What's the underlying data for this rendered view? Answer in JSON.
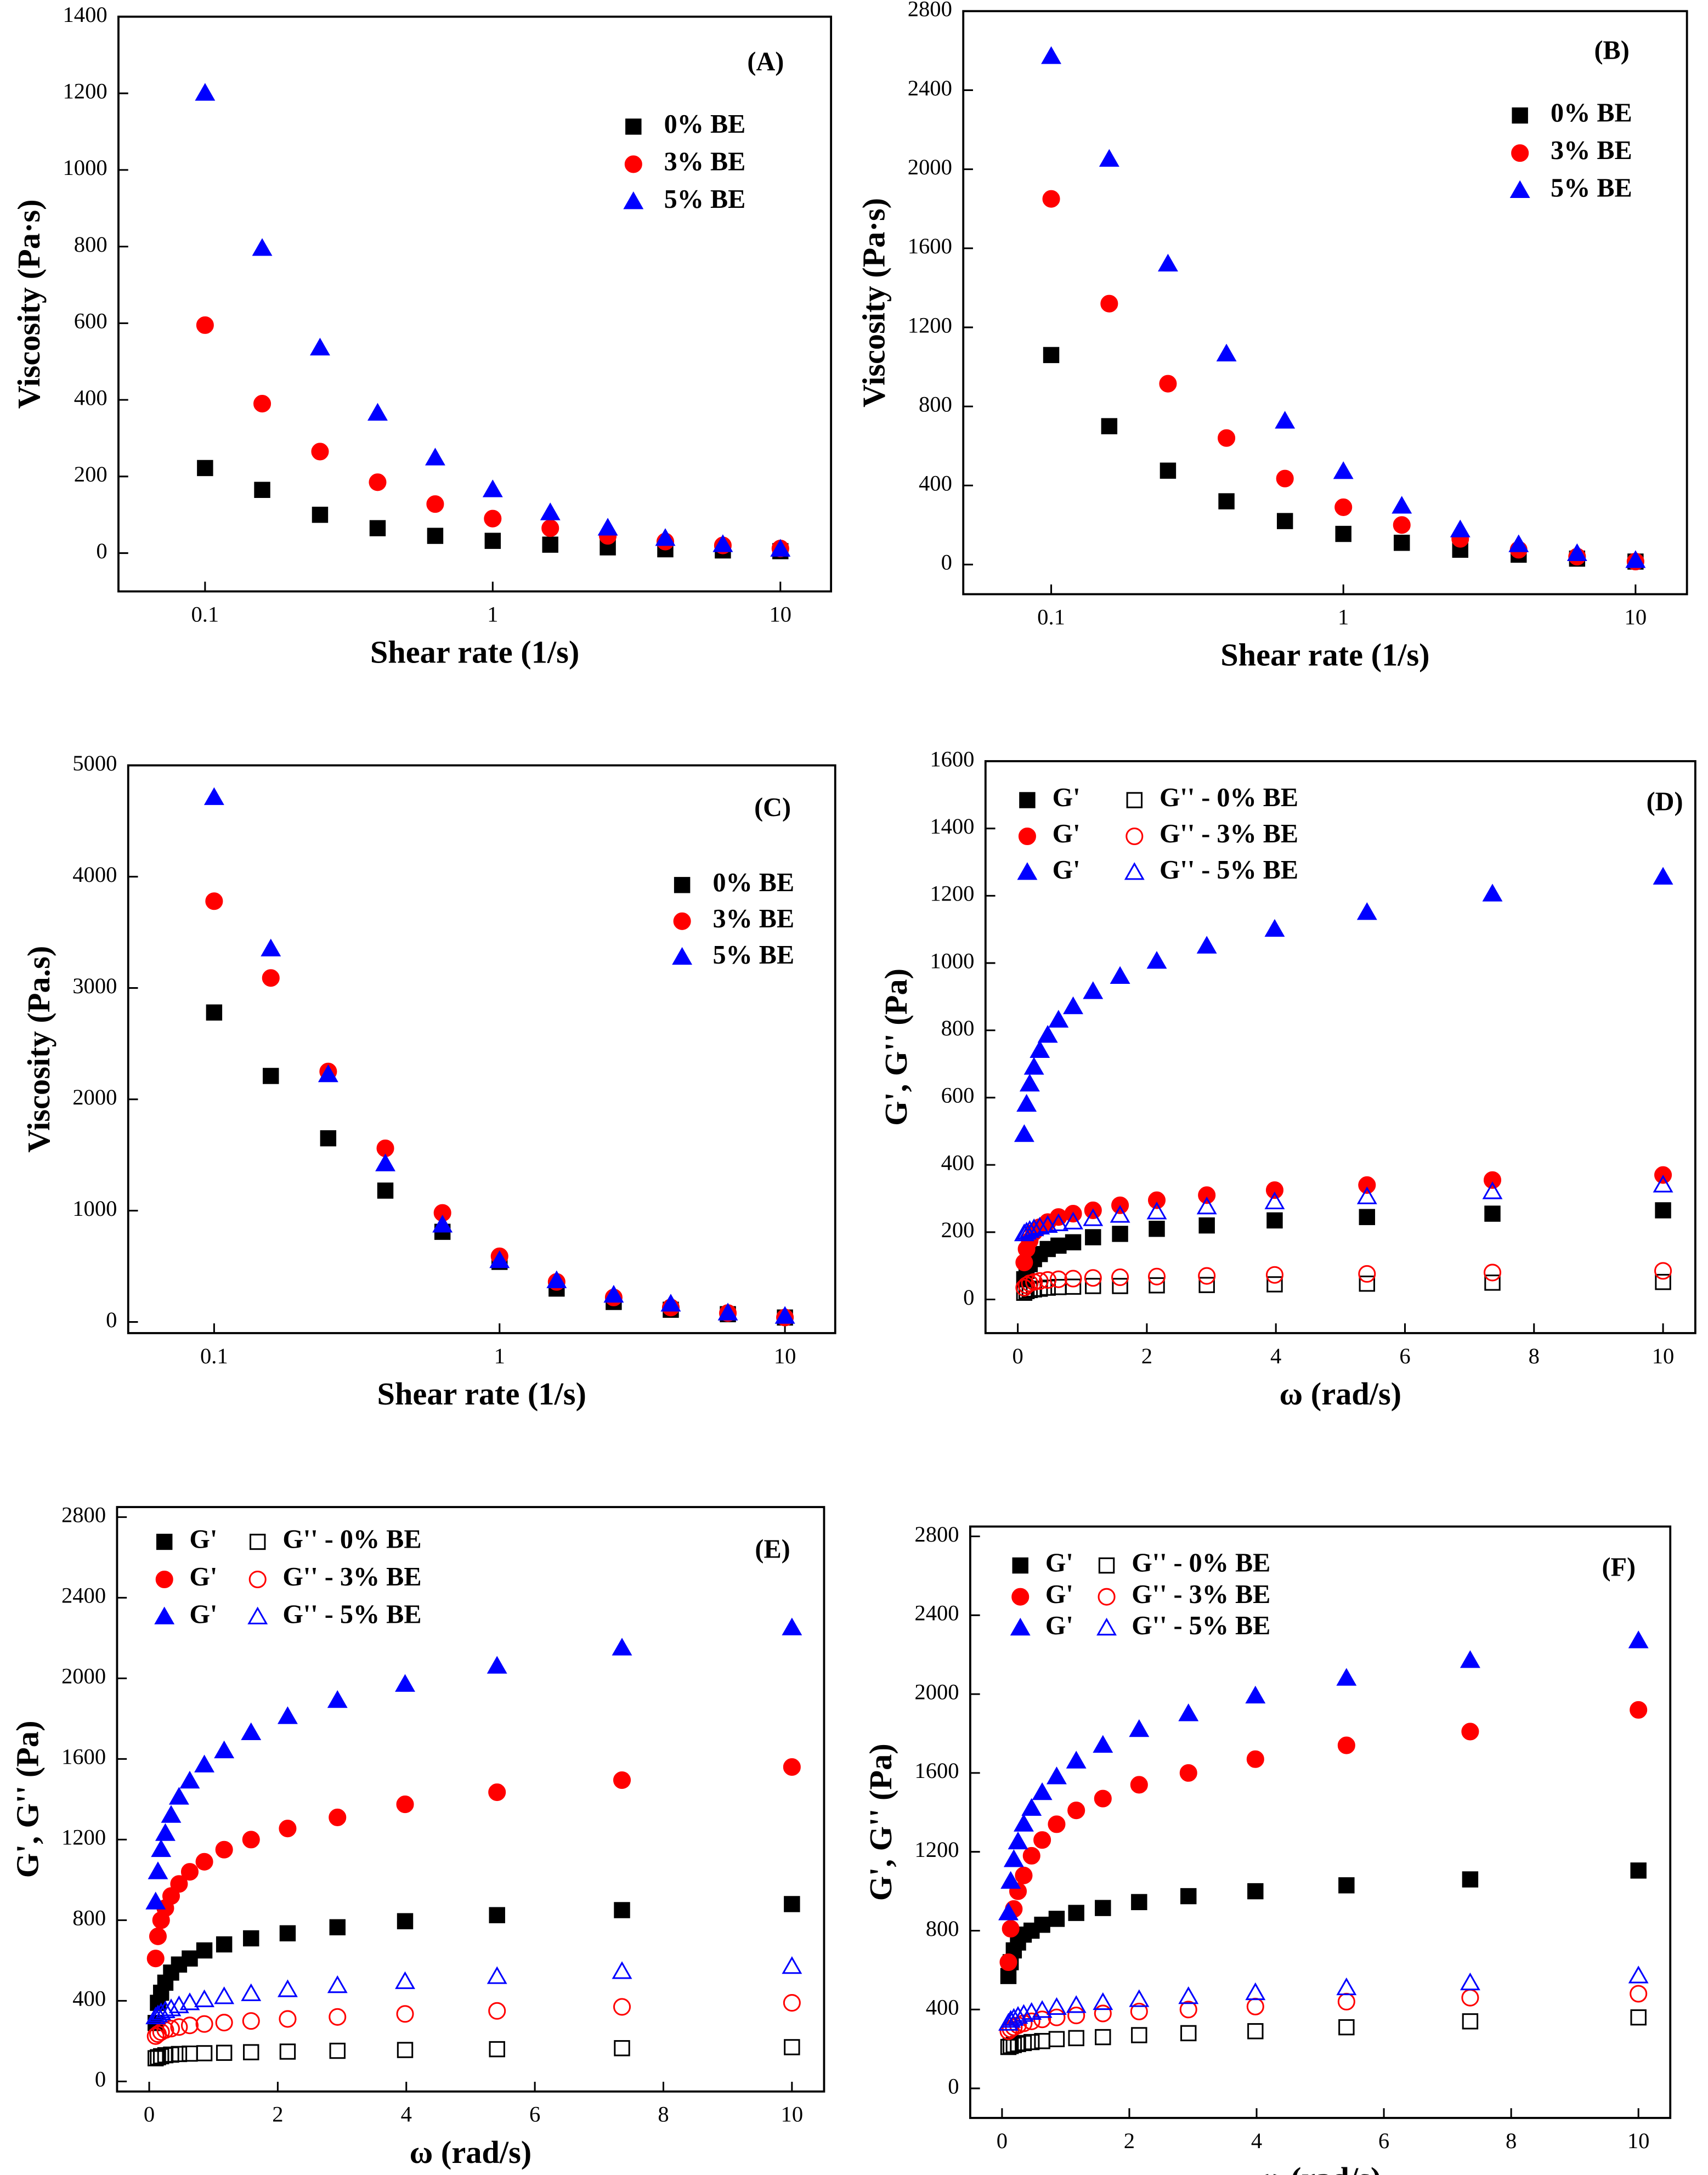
{
  "chart_data": [
    {
      "type": "scatter",
      "panel_label": "(A)",
      "x_label": "Shear rate (1/s)",
      "y_label": "Viscosity (Pa·s)",
      "xscale": "log",
      "x": [
        0.1,
        0.158,
        0.251,
        0.398,
        0.631,
        1,
        1.585,
        2.512,
        3.981,
        6.31,
        10
      ],
      "xlim": [
        0.05,
        15
      ],
      "xticks": [
        0.1,
        1,
        10
      ],
      "ylim": [
        -100,
        1400
      ],
      "yticks": [
        0,
        200,
        400,
        600,
        800,
        1000,
        1200,
        1400
      ],
      "series": [
        {
          "name": "0% BE",
          "color": "#000000",
          "marker": "square",
          "filled": true,
          "values": [
            222,
            165,
            100,
            65,
            45,
            32,
            22,
            15,
            10,
            7,
            5
          ]
        },
        {
          "name": "3% BE",
          "color": "#ff0000",
          "marker": "circle",
          "filled": true,
          "values": [
            595,
            390,
            265,
            185,
            128,
            90,
            65,
            45,
            30,
            20,
            12
          ]
        },
        {
          "name": "5% BE",
          "color": "#0000ff",
          "marker": "triangle",
          "filled": true,
          "values": [
            1200,
            795,
            535,
            365,
            248,
            165,
            105,
            65,
            38,
            22,
            10
          ]
        }
      ]
    },
    {
      "type": "scatter",
      "panel_label": "(B)",
      "x_label": "Shear rate (1/s)",
      "y_label": "Viscosity (Pa·s)",
      "xscale": "log",
      "x": [
        0.1,
        0.158,
        0.251,
        0.398,
        0.631,
        1,
        1.585,
        2.512,
        3.981,
        6.31,
        10
      ],
      "xlim": [
        0.05,
        15
      ],
      "xticks": [
        0.1,
        1,
        10
      ],
      "ylim": [
        -150,
        2800
      ],
      "yticks": [
        0,
        400,
        800,
        1200,
        1600,
        2000,
        2400,
        2800
      ],
      "series": [
        {
          "name": "0% BE",
          "color": "#000000",
          "marker": "square",
          "filled": true,
          "values": [
            1060,
            700,
            475,
            320,
            220,
            155,
            110,
            75,
            50,
            30,
            15
          ]
        },
        {
          "name": "3% BE",
          "color": "#ff0000",
          "marker": "circle",
          "filled": true,
          "values": [
            1850,
            1320,
            915,
            640,
            435,
            290,
            200,
            130,
            75,
            40,
            15
          ]
        },
        {
          "name": "5% BE",
          "color": "#0000ff",
          "marker": "triangle",
          "filled": true,
          "values": [
            2570,
            2050,
            1520,
            1065,
            725,
            470,
            295,
            175,
            100,
            55,
            20
          ]
        }
      ]
    },
    {
      "type": "scatter",
      "panel_label": "(C)",
      "x_label": "Shear rate (1/s)",
      "y_label": "Viscosity (Pa.s)",
      "xscale": "log",
      "x": [
        0.1,
        0.158,
        0.251,
        0.398,
        0.631,
        1,
        1.585,
        2.512,
        3.981,
        6.31,
        10
      ],
      "xlim": [
        0.05,
        15
      ],
      "xticks": [
        0.1,
        1,
        10
      ],
      "ylim": [
        -100,
        5000
      ],
      "yticks": [
        0,
        1000,
        2000,
        3000,
        4000,
        5000
      ],
      "series": [
        {
          "name": "0% BE",
          "color": "#000000",
          "marker": "square",
          "filled": true,
          "values": [
            2780,
            2210,
            1650,
            1180,
            810,
            540,
            300,
            180,
            110,
            70,
            40
          ]
        },
        {
          "name": "3% BE",
          "color": "#ff0000",
          "marker": "circle",
          "filled": true,
          "values": [
            3780,
            3090,
            2250,
            1560,
            980,
            590,
            360,
            220,
            130,
            80,
            40
          ]
        },
        {
          "name": "5% BE",
          "color": "#0000ff",
          "marker": "triangle",
          "filled": true,
          "values": [
            4710,
            3350,
            2220,
            1420,
            870,
            550,
            370,
            240,
            160,
            80,
            50
          ]
        }
      ]
    },
    {
      "type": "scatter",
      "panel_label": "(D)",
      "x_label": "ω (rad/s)",
      "y_label": "G', G'' (Pa)",
      "xscale": "linear",
      "x": [
        0.1,
        0.136,
        0.185,
        0.251,
        0.341,
        0.464,
        0.631,
        0.858,
        1.166,
        1.585,
        2.154,
        2.929,
        3.981,
        5.412,
        7.356,
        10
      ],
      "xlim": [
        -0.5,
        10.5
      ],
      "xticks": [
        0,
        2,
        4,
        6,
        8,
        10
      ],
      "ylim": [
        -100,
        1600
      ],
      "yticks": [
        0,
        200,
        400,
        600,
        800,
        1000,
        1200,
        1400,
        1600
      ],
      "series": [
        {
          "name": "G'",
          "color": "#000000",
          "marker": "square",
          "filled": true,
          "values": [
            60,
            85,
            105,
            120,
            135,
            150,
            160,
            170,
            185,
            195,
            210,
            220,
            235,
            245,
            255,
            265
          ]
        },
        {
          "name": "G'' - 0% BE",
          "color": "#000000",
          "marker": "square",
          "filled": false,
          "values": [
            20,
            25,
            28,
            30,
            32,
            35,
            37,
            38,
            40,
            40,
            42,
            43,
            45,
            47,
            50,
            52
          ]
        },
        {
          "name": "G'",
          "color": "#ff0000",
          "marker": "circle",
          "filled": true,
          "values": [
            110,
            150,
            175,
            200,
            215,
            230,
            245,
            255,
            265,
            280,
            295,
            310,
            325,
            340,
            355,
            370
          ]
        },
        {
          "name": "G'' - 3% BE",
          "color": "#ff0000",
          "marker": "circle",
          "filled": false,
          "values": [
            35,
            42,
            48,
            52,
            55,
            58,
            60,
            62,
            64,
            66,
            68,
            70,
            73,
            76,
            80,
            85
          ]
        },
        {
          "name": "G'",
          "color": "#0000ff",
          "marker": "triangle",
          "filled": true,
          "values": [
            490,
            580,
            640,
            690,
            740,
            785,
            830,
            870,
            915,
            960,
            1005,
            1050,
            1100,
            1150,
            1205,
            1255
          ]
        },
        {
          "name": "G'' - 5% BE",
          "color": "#0000ff",
          "marker": "triangle",
          "filled": false,
          "values": [
            195,
            200,
            205,
            210,
            215,
            220,
            225,
            230,
            240,
            250,
            260,
            275,
            290,
            305,
            320,
            340
          ]
        }
      ]
    },
    {
      "type": "scatter",
      "panel_label": "(E)",
      "x_label": "ω (rad/s)",
      "y_label": "G', G'' (Pa)",
      "xscale": "linear",
      "x": [
        0.1,
        0.136,
        0.185,
        0.251,
        0.341,
        0.464,
        0.631,
        0.858,
        1.166,
        1.585,
        2.154,
        2.929,
        3.981,
        5.412,
        7.356,
        10
      ],
      "xlim": [
        -0.5,
        10.5
      ],
      "xticks": [
        0,
        2,
        4,
        6,
        8,
        10
      ],
      "ylim": [
        -50,
        2850
      ],
      "yticks": [
        0,
        400,
        800,
        1200,
        1600,
        2000,
        2400,
        2800
      ],
      "series": [
        {
          "name": "G'",
          "color": "#000000",
          "marker": "square",
          "filled": true,
          "values": [
            290,
            390,
            440,
            490,
            540,
            580,
            610,
            650,
            680,
            710,
            735,
            765,
            795,
            825,
            850,
            880
          ]
        },
        {
          "name": "G'' - 0% BE",
          "color": "#000000",
          "marker": "square",
          "filled": false,
          "values": [
            115,
            120,
            125,
            130,
            133,
            136,
            138,
            140,
            142,
            145,
            148,
            152,
            156,
            160,
            165,
            170
          ]
        },
        {
          "name": "G'",
          "color": "#ff0000",
          "marker": "circle",
          "filled": true,
          "values": [
            610,
            720,
            800,
            860,
            920,
            980,
            1040,
            1090,
            1150,
            1200,
            1255,
            1310,
            1375,
            1435,
            1495,
            1560
          ]
        },
        {
          "name": "G'' - 3% BE",
          "color": "#ff0000",
          "marker": "circle",
          "filled": false,
          "values": [
            225,
            235,
            245,
            255,
            262,
            270,
            278,
            285,
            292,
            300,
            310,
            320,
            335,
            350,
            370,
            390
          ]
        },
        {
          "name": "G'",
          "color": "#0000ff",
          "marker": "triangle",
          "filled": true,
          "values": [
            890,
            1040,
            1150,
            1230,
            1320,
            1410,
            1490,
            1570,
            1640,
            1730,
            1810,
            1890,
            1970,
            2060,
            2150,
            2250
          ]
        },
        {
          "name": "G'' - 5% BE",
          "color": "#0000ff",
          "marker": "triangle",
          "filled": false,
          "values": [
            320,
            330,
            340,
            350,
            360,
            375,
            390,
            405,
            420,
            435,
            455,
            475,
            495,
            520,
            545,
            570
          ]
        }
      ]
    },
    {
      "type": "scatter",
      "panel_label": "(F)",
      "x_label": "ω (rad/s)",
      "y_label": "G', G'' (Pa)",
      "xscale": "linear",
      "x": [
        0.1,
        0.136,
        0.185,
        0.251,
        0.341,
        0.464,
        0.631,
        0.858,
        1.166,
        1.585,
        2.154,
        2.929,
        3.981,
        5.412,
        7.356,
        10
      ],
      "xlim": [
        -0.5,
        10.5
      ],
      "xticks": [
        0,
        2,
        4,
        6,
        8,
        10
      ],
      "ylim": [
        -150,
        2850
      ],
      "yticks": [
        0,
        400,
        800,
        1200,
        1600,
        2000,
        2400,
        2800
      ],
      "series": [
        {
          "name": "G'",
          "color": "#000000",
          "marker": "square",
          "filled": true,
          "values": [
            570,
            640,
            700,
            740,
            780,
            800,
            830,
            860,
            890,
            915,
            945,
            975,
            1000,
            1030,
            1060,
            1105
          ]
        },
        {
          "name": "G'' - 0% BE",
          "color": "#000000",
          "marker": "square",
          "filled": false,
          "values": [
            210,
            215,
            220,
            225,
            230,
            235,
            240,
            250,
            255,
            260,
            270,
            280,
            290,
            310,
            340,
            360
          ]
        },
        {
          "name": "G'",
          "color": "#ff0000",
          "marker": "circle",
          "filled": true,
          "values": [
            640,
            810,
            910,
            1000,
            1080,
            1180,
            1260,
            1340,
            1410,
            1470,
            1540,
            1600,
            1670,
            1740,
            1810,
            1920
          ]
        },
        {
          "name": "G'' - 3% BE",
          "color": "#ff0000",
          "marker": "circle",
          "filled": false,
          "values": [
            290,
            300,
            310,
            320,
            330,
            340,
            350,
            360,
            370,
            380,
            390,
            400,
            415,
            440,
            460,
            480
          ]
        },
        {
          "name": "G'",
          "color": "#0000ff",
          "marker": "triangle",
          "filled": true,
          "values": [
            890,
            1050,
            1160,
            1250,
            1340,
            1420,
            1500,
            1580,
            1660,
            1740,
            1820,
            1900,
            1990,
            2080,
            2170,
            2270
          ]
        },
        {
          "name": "G'' - 5% BE",
          "color": "#0000ff",
          "marker": "triangle",
          "filled": false,
          "values": [
            330,
            345,
            355,
            365,
            375,
            385,
            395,
            410,
            420,
            435,
            450,
            465,
            485,
            510,
            535,
            570
          ]
        }
      ]
    }
  ]
}
